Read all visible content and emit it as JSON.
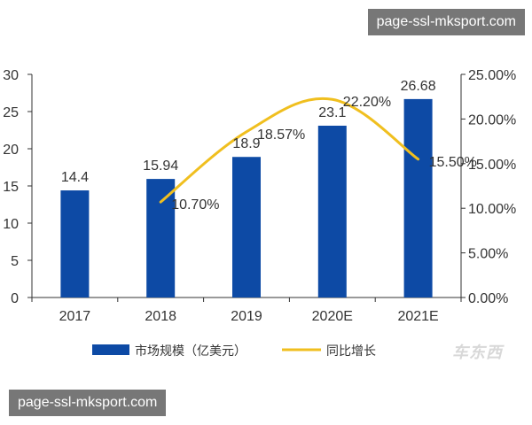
{
  "watermark": {
    "top": "page-ssl-mksport.com",
    "bottom": "page-ssl-mksport.com"
  },
  "logo": "车东西",
  "colors": {
    "bar": "#0d4aa5",
    "line": "#f0bf1f",
    "axis": "#333333",
    "text": "#333333"
  },
  "chart_data": {
    "type": "bar",
    "categories": [
      "2017",
      "2018",
      "2019",
      "2020E",
      "2021E"
    ],
    "series": [
      {
        "name": "市场规模（亿美元）",
        "type": "bar",
        "axis": "left",
        "values": [
          14.4,
          15.94,
          18.9,
          23.1,
          26.68
        ],
        "labels": [
          "14.4",
          "15.94",
          "18.9",
          "23.1",
          "26.68"
        ]
      },
      {
        "name": "同比增长",
        "type": "line",
        "axis": "right",
        "values": [
          null,
          10.7,
          18.57,
          22.2,
          15.5
        ],
        "labels": [
          "",
          "10.70%",
          "18.57%",
          "22.20%",
          "15.50%"
        ]
      }
    ],
    "y_left": {
      "lim": [
        0,
        30
      ],
      "ticks": [
        "0",
        "5",
        "10",
        "15",
        "20",
        "25",
        "30"
      ]
    },
    "y_right": {
      "lim": [
        0,
        25
      ],
      "ticks": [
        "0.00%",
        "5.00%",
        "10.00%",
        "15.00%",
        "20.00%",
        "25.00%"
      ]
    },
    "grid": false,
    "legend_position": "bottom"
  }
}
